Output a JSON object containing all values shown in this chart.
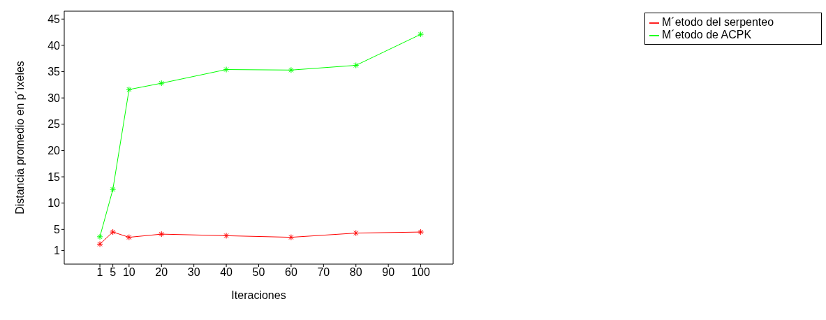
{
  "chart_data": {
    "type": "line",
    "xlabel": "Iteraciones",
    "ylabel": "Distancia promedio en p´ıxeles",
    "x": [
      1,
      5,
      10,
      20,
      40,
      60,
      80,
      100
    ],
    "series": [
      {
        "name": "M´etodo del serpenteo",
        "color": "#ff0000",
        "values": [
          2.2,
          4.5,
          3.5,
          4.1,
          3.8,
          3.5,
          4.3,
          4.5
        ]
      },
      {
        "name": "M´etodo de ACPK",
        "color": "#00ff00",
        "values": [
          3.6,
          12.6,
          31.6,
          32.8,
          35.4,
          35.3,
          36.2,
          42.1
        ]
      }
    ],
    "xlim": [
      -10,
      110
    ],
    "xticks": [
      1,
      5,
      10,
      20,
      30,
      40,
      50,
      60,
      70,
      80,
      90,
      100
    ],
    "ylim": [
      -1.6,
      46.5
    ],
    "yticks": [
      1,
      5,
      10,
      15,
      20,
      25,
      30,
      35,
      40,
      45
    ],
    "legend": "top right",
    "marker": "cross",
    "line_style": "solid"
  }
}
